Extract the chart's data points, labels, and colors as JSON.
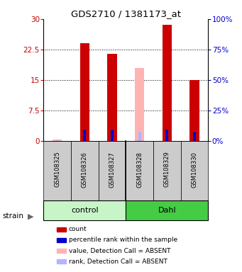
{
  "title": "GDS2710 / 1381173_at",
  "samples": [
    "GSM108325",
    "GSM108326",
    "GSM108327",
    "GSM108328",
    "GSM108329",
    "GSM108330"
  ],
  "groups": [
    "control",
    "control",
    "control",
    "Dahl",
    "Dahl",
    "Dahl"
  ],
  "count_values": [
    0.3,
    24.0,
    21.5,
    18.0,
    28.5,
    15.0
  ],
  "count_absent": [
    true,
    false,
    false,
    true,
    false,
    false
  ],
  "rank_values": [
    0.5,
    9.0,
    9.0,
    7.5,
    9.0,
    7.5
  ],
  "rank_absent": [
    true,
    false,
    false,
    true,
    false,
    false
  ],
  "rank_scale": 3.0,
  "ylim_left": [
    0,
    30
  ],
  "ylim_right": [
    0,
    100
  ],
  "yticks_left": [
    0,
    7.5,
    15,
    22.5,
    30
  ],
  "yticks_right": [
    0,
    25,
    50,
    75,
    100
  ],
  "ytick_labels_left": [
    "0",
    "7.5",
    "15",
    "22.5",
    "30"
  ],
  "ytick_labels_right": [
    "0%",
    "25%",
    "50%",
    "75%",
    "100%"
  ],
  "color_count": "#cc0000",
  "color_count_absent": "#ffb3b3",
  "color_rank": "#0000cc",
  "color_rank_absent": "#b3b3ff",
  "count_bar_width": 0.35,
  "rank_bar_width": 0.1,
  "group_colors_control": "#c8f5c8",
  "group_colors_dahl": "#44cc44",
  "legend_items": [
    {
      "color": "#cc0000",
      "label": "count"
    },
    {
      "color": "#0000cc",
      "label": "percentile rank within the sample"
    },
    {
      "color": "#ffb3b3",
      "label": "value, Detection Call = ABSENT"
    },
    {
      "color": "#b3b3ff",
      "label": "rank, Detection Call = ABSENT"
    }
  ],
  "xlabel_strain": "strain",
  "background_plot": "#ffffff"
}
